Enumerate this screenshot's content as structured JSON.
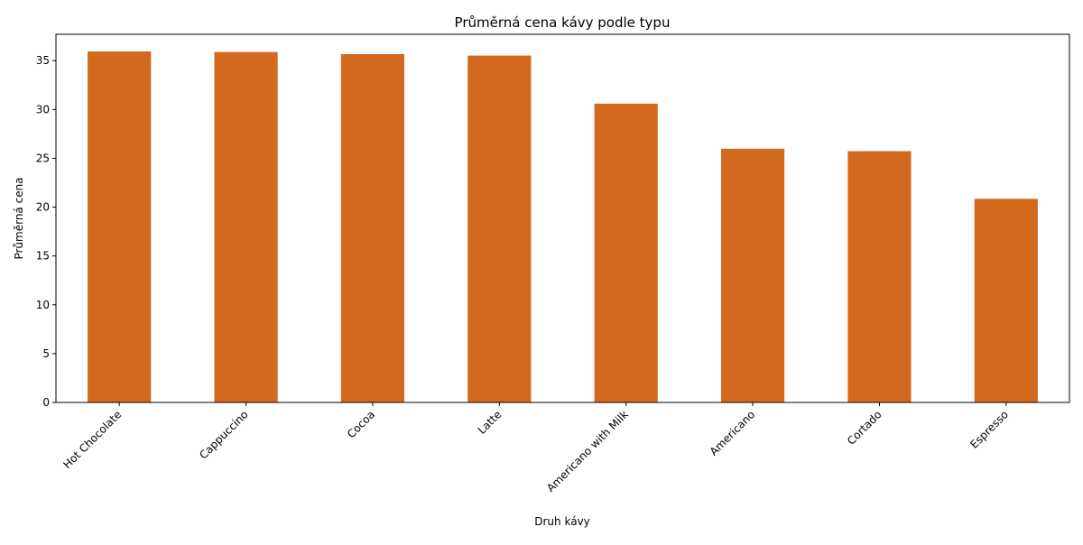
{
  "chart_data": {
    "type": "bar",
    "title": "Průměrná cena kávy podle typu",
    "xlabel": "Druh kávy",
    "ylabel": "Průměrná cena",
    "categories": [
      "Hot Chocolate",
      "Cappuccino",
      "Cocoa",
      "Latte",
      "Americano with Milk",
      "Americano",
      "Cortado",
      "Espresso"
    ],
    "values": [
      35.95,
      35.88,
      35.67,
      35.52,
      30.6,
      25.98,
      25.73,
      20.85
    ],
    "ylim": [
      0,
      37.7
    ],
    "yticks": [
      0,
      5,
      10,
      15,
      20,
      25,
      30,
      35
    ],
    "grid": false,
    "legend": "none",
    "bar_color": "#D2691E"
  }
}
